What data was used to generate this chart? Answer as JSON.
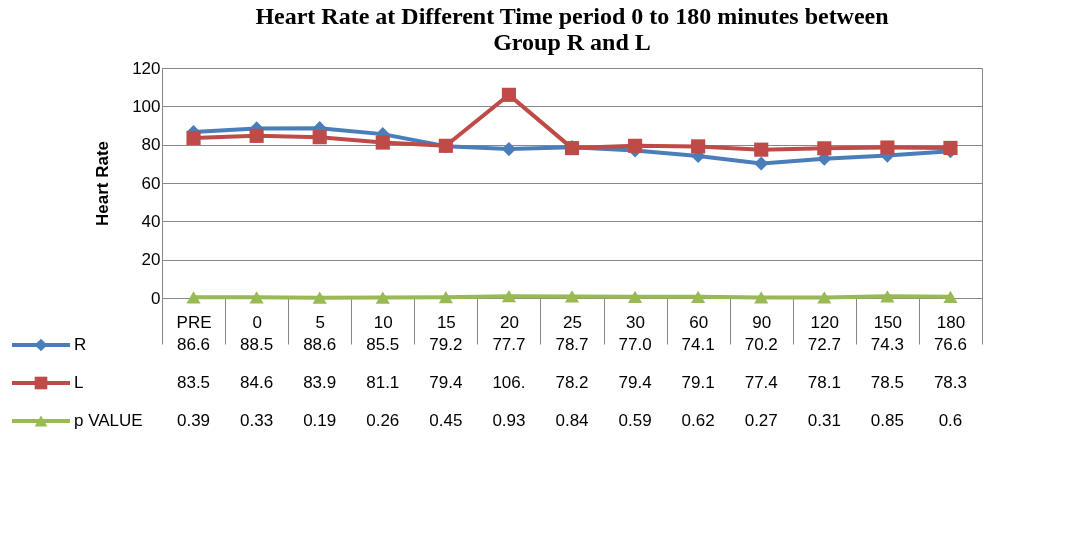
{
  "chart_data": {
    "type": "line",
    "title": [
      "Heart Rate at Different Time period 0 to 180 minutes between",
      "Group R and L"
    ],
    "ylabel": "Heart Rate",
    "categories": [
      "PRE",
      "0",
      "5",
      "10",
      "15",
      "20",
      "25",
      "30",
      "60",
      "90",
      "120",
      "150",
      "180"
    ],
    "ylim": [
      0,
      120
    ],
    "yticks": [
      0,
      20,
      40,
      60,
      80,
      100,
      120
    ],
    "grid": "y",
    "legend": "bottom",
    "line_style": "solid",
    "series": [
      {
        "name": "R",
        "color": "#4a7ebb",
        "marker": "diamond",
        "values": [
          86.6,
          88.5,
          88.6,
          85.5,
          79.2,
          77.7,
          78.7,
          77.0,
          74.1,
          70.2,
          72.7,
          74.3,
          76.6
        ],
        "value_labels": [
          "86.6",
          "88.5",
          "88.6",
          "85.5",
          "79.2",
          "77.7",
          "78.7",
          "77.0",
          "74.1",
          "70.2",
          "72.7",
          "74.3",
          "76.6"
        ]
      },
      {
        "name": "L",
        "color": "#be4b48",
        "marker": "square",
        "values": [
          83.5,
          84.6,
          83.9,
          81.1,
          79.4,
          106,
          78.2,
          79.4,
          79.1,
          77.4,
          78.1,
          78.5,
          78.3
        ],
        "value_labels": [
          "83.5",
          "84.6",
          "83.9",
          "81.1",
          "79.4",
          "106.",
          "78.2",
          "79.4",
          "79.1",
          "77.4",
          "78.1",
          "78.5",
          "78.3"
        ]
      },
      {
        "name": "p VALUE",
        "color": "#98b954",
        "marker": "triangle",
        "values": [
          0.39,
          0.33,
          0.19,
          0.26,
          0.45,
          0.93,
          0.84,
          0.59,
          0.62,
          0.27,
          0.31,
          0.85,
          0.6
        ],
        "value_labels": [
          "0.39",
          "0.33",
          "0.19",
          "0.26",
          "0.45",
          "0.93",
          "0.84",
          "0.59",
          "0.62",
          "0.27",
          "0.31",
          "0.85",
          "0.6"
        ]
      }
    ]
  }
}
